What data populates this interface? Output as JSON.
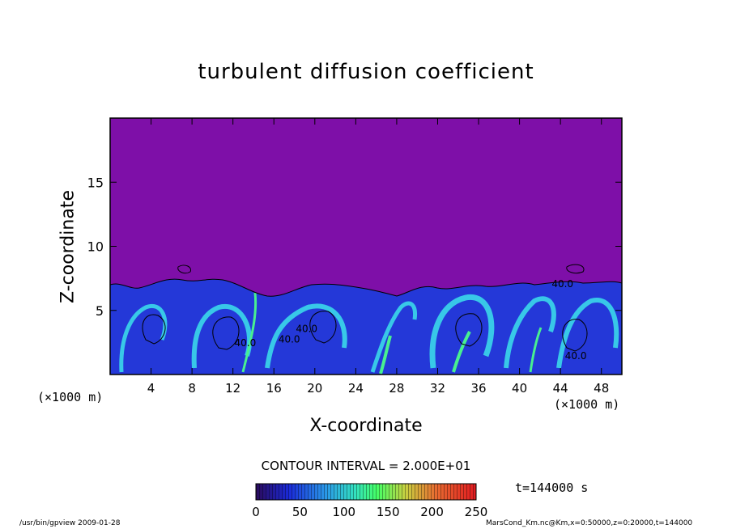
{
  "chart_data": {
    "type": "heatmap",
    "title": "turbulent diffusion coefficient",
    "xlabel": "X-coordinate",
    "ylabel": "Z-coordinate",
    "x_unit_left": "(×1000 m)",
    "x_unit_right": "(×1000 m)",
    "xlim": [
      0,
      50
    ],
    "ylim": [
      0,
      20
    ],
    "x_ticks": [
      4,
      8,
      12,
      16,
      20,
      24,
      28,
      32,
      36,
      40,
      44,
      48
    ],
    "y_ticks": [
      5,
      10,
      15
    ],
    "contour_interval_text": "CONTOUR INTERVAL = 2.000E+01",
    "contour_labels": [
      "40.0",
      "40.0",
      "40.0",
      "40.0",
      "40.0"
    ],
    "colorbar": {
      "min": 0,
      "max": 250,
      "ticks": [
        0,
        50,
        100,
        150,
        200,
        250
      ]
    },
    "time_text": "t=144000 s",
    "colors": {
      "background_field": "#7e0fa8",
      "low": "#2233e0",
      "mid": "#33c4e8",
      "high": "#33ff88"
    }
  },
  "footer": {
    "left": "/usr/bin/gpview  2009-01-28",
    "right": "MarsCond_Km.nc@Km,x=0:50000,z=0:20000,t=144000"
  }
}
